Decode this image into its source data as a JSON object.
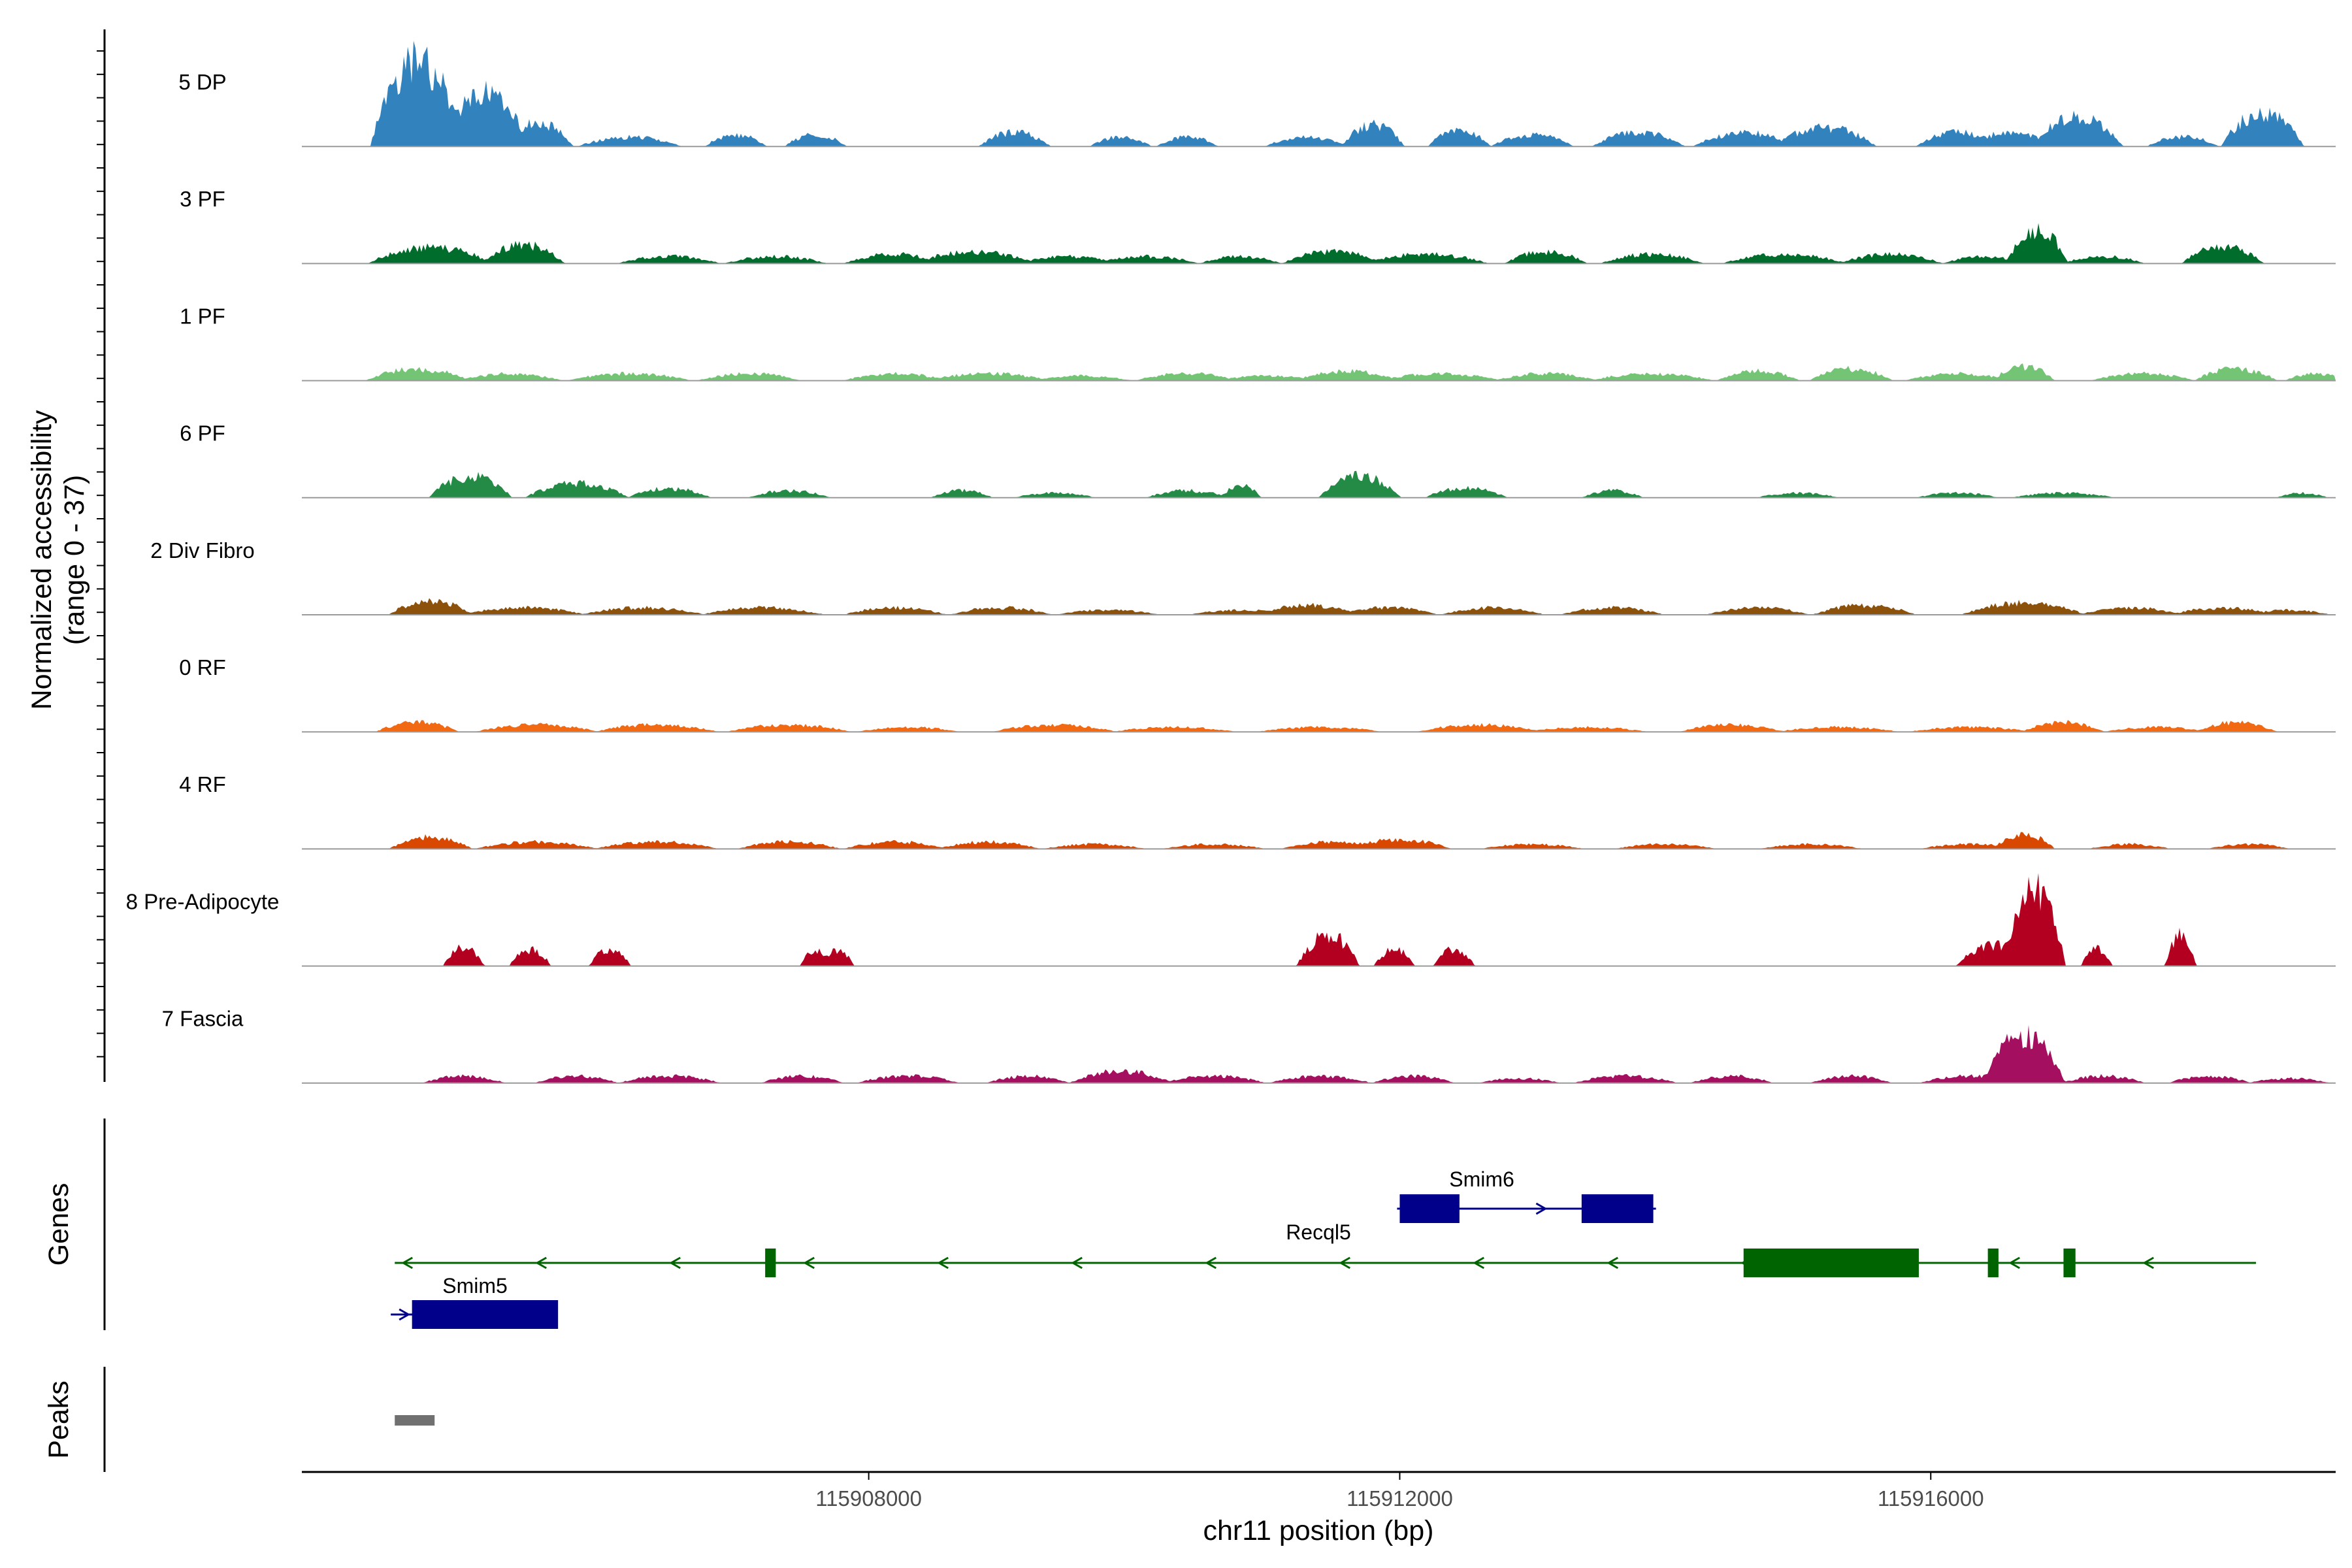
{
  "chart_data": {
    "type": "area",
    "y_axis": {
      "title_line1": "Normalized accessibility",
      "title_line2": "(range 0 - 37)",
      "ylim": [
        0,
        37
      ]
    },
    "x_axis": {
      "title": "chr11 position (bp)",
      "ticks": [
        115908000,
        115912000,
        115916000
      ],
      "tick_labels": [
        "115908000",
        "115912000",
        "115916000"
      ],
      "xlim": [
        115903730,
        115919050
      ]
    },
    "tracks": [
      {
        "name": "5 DP",
        "color": "#3182bd",
        "peaks": [
          [
            115904600,
            37,
            45
          ],
          [
            115905100,
            22,
            45
          ],
          [
            115905500,
            10,
            35
          ],
          [
            115906200,
            4,
            50
          ],
          [
            115907000,
            5,
            30
          ],
          [
            115907600,
            5,
            30
          ],
          [
            115909100,
            6,
            35
          ],
          [
            115909900,
            4,
            30
          ],
          [
            115910400,
            4,
            30
          ],
          [
            115911300,
            4,
            40
          ],
          [
            115911800,
            9,
            30
          ],
          [
            115912450,
            7,
            30
          ],
          [
            115913000,
            5,
            40
          ],
          [
            115913800,
            6,
            45
          ],
          [
            115914600,
            6,
            50
          ],
          [
            115915200,
            8,
            50
          ],
          [
            115916200,
            6,
            40
          ],
          [
            115916600,
            6,
            40
          ],
          [
            115917100,
            12,
            45
          ],
          [
            115917900,
            4,
            35
          ],
          [
            115918500,
            14,
            40
          ]
        ]
      },
      {
        "name": "3 PF",
        "color": "#006d2c",
        "peaks": [
          [
            115904700,
            7,
            60
          ],
          [
            115905400,
            8,
            40
          ],
          [
            115906500,
            3,
            50
          ],
          [
            115907300,
            3,
            50
          ],
          [
            115908200,
            4,
            50
          ],
          [
            115908800,
            5,
            60
          ],
          [
            115909500,
            3,
            50
          ],
          [
            115910100,
            3,
            50
          ],
          [
            115910800,
            3,
            40
          ],
          [
            115911500,
            5,
            50
          ],
          [
            115912200,
            4,
            60
          ],
          [
            115913100,
            5,
            40
          ],
          [
            115913900,
            4,
            50
          ],
          [
            115914900,
            4,
            60
          ],
          [
            115915700,
            4,
            50
          ],
          [
            115916400,
            3,
            40
          ],
          [
            115916800,
            14,
            30
          ],
          [
            115917300,
            3,
            40
          ],
          [
            115918200,
            7,
            40
          ]
        ]
      },
      {
        "name": "1 PF",
        "color": "#74c476",
        "peaks": [
          [
            115904600,
            5,
            50
          ],
          [
            115905300,
            3,
            50
          ],
          [
            115906200,
            3,
            60
          ],
          [
            115907100,
            3,
            50
          ],
          [
            115908200,
            3,
            50
          ],
          [
            115908900,
            3,
            60
          ],
          [
            115909600,
            2,
            50
          ],
          [
            115910400,
            3,
            50
          ],
          [
            115911000,
            2,
            50
          ],
          [
            115911600,
            4,
            50
          ],
          [
            115912300,
            3,
            60
          ],
          [
            115913100,
            3,
            50
          ],
          [
            115913900,
            3,
            60
          ],
          [
            115914700,
            4,
            40
          ],
          [
            115915400,
            5,
            40
          ],
          [
            115916200,
            3,
            50
          ],
          [
            115916700,
            6,
            30
          ],
          [
            115917600,
            3,
            50
          ],
          [
            115918300,
            5,
            40
          ],
          [
            115918900,
            3,
            30
          ]
        ]
      },
      {
        "name": "6 PF",
        "color": "#238b45",
        "peaks": [
          [
            115905000,
            9,
            40
          ],
          [
            115905800,
            6,
            50
          ],
          [
            115906500,
            4,
            40
          ],
          [
            115907400,
            3,
            40
          ],
          [
            115908700,
            3,
            30
          ],
          [
            115909400,
            2,
            40
          ],
          [
            115910400,
            3,
            40
          ],
          [
            115910800,
            5,
            20
          ],
          [
            115911700,
            9,
            40
          ],
          [
            115912500,
            4,
            40
          ],
          [
            115913600,
            3,
            30
          ],
          [
            115915000,
            2,
            40
          ],
          [
            115916200,
            2,
            40
          ],
          [
            115917000,
            2,
            50
          ],
          [
            115918800,
            2,
            25
          ]
        ]
      },
      {
        "name": "2 Div Fibro",
        "color": "#8c510a",
        "peaks": [
          [
            115904700,
            6,
            40
          ],
          [
            115905400,
            3,
            60
          ],
          [
            115906300,
            3,
            60
          ],
          [
            115907200,
            3,
            60
          ],
          [
            115908200,
            3,
            50
          ],
          [
            115909000,
            3,
            50
          ],
          [
            115909800,
            2,
            50
          ],
          [
            115910800,
            2,
            50
          ],
          [
            115911300,
            4,
            50
          ],
          [
            115911900,
            3,
            50
          ],
          [
            115912700,
            3,
            50
          ],
          [
            115913600,
            3,
            50
          ],
          [
            115914700,
            3,
            50
          ],
          [
            115915500,
            4,
            50
          ],
          [
            115916700,
            5,
            60
          ],
          [
            115917500,
            3,
            50
          ],
          [
            115918200,
            3,
            50
          ],
          [
            115918700,
            2,
            40
          ]
        ]
      },
      {
        "name": "0 RF",
        "color": "#f16913",
        "peaks": [
          [
            115904600,
            4,
            40
          ],
          [
            115905500,
            3,
            60
          ],
          [
            115906400,
            3,
            60
          ],
          [
            115907400,
            3,
            60
          ],
          [
            115908300,
            2,
            50
          ],
          [
            115909400,
            3,
            60
          ],
          [
            115910300,
            2,
            60
          ],
          [
            115911400,
            2,
            60
          ],
          [
            115912600,
            3,
            60
          ],
          [
            115913400,
            2,
            60
          ],
          [
            115914500,
            3,
            50
          ],
          [
            115915300,
            2,
            60
          ],
          [
            115916300,
            2,
            60
          ],
          [
            115917000,
            4,
            40
          ],
          [
            115917700,
            2,
            50
          ],
          [
            115918300,
            4,
            40
          ]
        ]
      },
      {
        "name": "4 RF",
        "color": "#d94801",
        "peaks": [
          [
            115904700,
            5,
            40
          ],
          [
            115905500,
            3,
            60
          ],
          [
            115906400,
            3,
            60
          ],
          [
            115907400,
            3,
            50
          ],
          [
            115908200,
            3,
            50
          ],
          [
            115908900,
            3,
            50
          ],
          [
            115909700,
            2,
            50
          ],
          [
            115910600,
            2,
            50
          ],
          [
            115911500,
            3,
            50
          ],
          [
            115912000,
            4,
            50
          ],
          [
            115913000,
            2,
            50
          ],
          [
            115914000,
            2,
            50
          ],
          [
            115915100,
            2,
            50
          ],
          [
            115916300,
            2,
            50
          ],
          [
            115916700,
            6,
            30
          ],
          [
            115917500,
            2,
            40
          ],
          [
            115918400,
            2,
            40
          ]
        ]
      },
      {
        "name": "8 Pre-Adipocyte",
        "color": "#b30021",
        "peaks": [
          [
            115904950,
            8,
            20
          ],
          [
            115905450,
            7,
            20
          ],
          [
            115906050,
            7,
            20
          ],
          [
            115907600,
            7,
            15
          ],
          [
            115907770,
            7,
            15
          ],
          [
            115911460,
            13,
            30
          ],
          [
            115911960,
            7,
            20
          ],
          [
            115912410,
            7,
            20
          ],
          [
            115916500,
            9,
            40
          ],
          [
            115916780,
            32,
            30
          ],
          [
            115917250,
            7,
            15
          ],
          [
            115917880,
            13,
            15
          ]
        ]
      },
      {
        "name": "7 Fascia",
        "color": "#a50f5f",
        "peaks": [
          [
            115904950,
            3,
            40
          ],
          [
            115905800,
            3,
            40
          ],
          [
            115906500,
            3,
            50
          ],
          [
            115907500,
            3,
            40
          ],
          [
            115908300,
            3,
            50
          ],
          [
            115909200,
            3,
            40
          ],
          [
            115909900,
            5,
            50
          ],
          [
            115910600,
            3,
            50
          ],
          [
            115911400,
            3,
            50
          ],
          [
            115912100,
            3,
            40
          ],
          [
            115912900,
            2,
            40
          ],
          [
            115913700,
            3,
            50
          ],
          [
            115914500,
            3,
            40
          ],
          [
            115915400,
            3,
            40
          ],
          [
            115916300,
            3,
            50
          ],
          [
            115916700,
            20,
            40
          ],
          [
            115917300,
            3,
            40
          ],
          [
            115918100,
            3,
            40
          ],
          [
            115918700,
            2,
            40
          ]
        ]
      }
    ],
    "gene_track_label": "Genes",
    "genes": [
      {
        "name": "Smim6",
        "strand": "+",
        "color": "#00008b",
        "start": 115911980,
        "end": 115913930,
        "exons": [
          [
            115912000,
            115912450
          ],
          [
            115913370,
            115913910
          ]
        ]
      },
      {
        "name": "Recql5",
        "strand": "-",
        "color": "#006400",
        "start": 115904430,
        "end": 115918450,
        "exons": [
          [
            115907220,
            115907300
          ],
          [
            115914590,
            115915910
          ],
          [
            115916430,
            115916510
          ],
          [
            115917000,
            115917090
          ]
        ]
      },
      {
        "name": "Smim5",
        "strand": "+",
        "color": "#00008b",
        "start": 115904400,
        "end": 115905630,
        "exons": [
          [
            115904560,
            115905660
          ]
        ]
      }
    ],
    "peaks_track_label": "Peaks",
    "peak_regions": [
      [
        115904430,
        115904730
      ]
    ]
  }
}
